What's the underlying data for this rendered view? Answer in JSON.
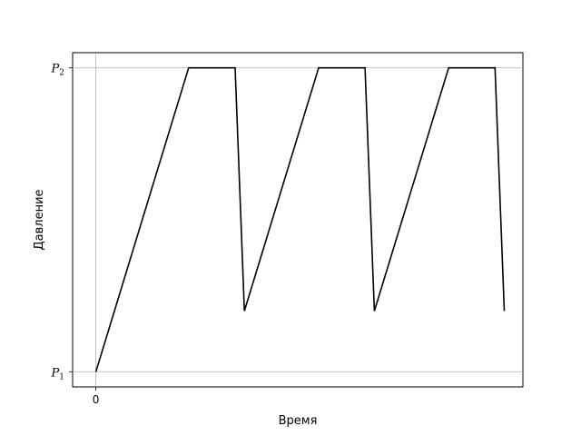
{
  "chart_data": {
    "type": "line",
    "title": "",
    "xlabel": "Время",
    "ylabel": "Давление",
    "x_ticks": [
      {
        "value": 0,
        "label": "0"
      }
    ],
    "y_ticks": [
      {
        "value": 0,
        "label": "P",
        "sub": "1"
      },
      {
        "value": 1,
        "label": "P",
        "sub": "2"
      }
    ],
    "grid": true,
    "xlim": [
      -0.5,
      9.2
    ],
    "ylim": [
      -0.05,
      1.05
    ],
    "series": [
      {
        "color": "#000000",
        "x": [
          0,
          2.0,
          3.0,
          3.2,
          4.8,
          5.8,
          6.0,
          7.6,
          8.6,
          8.8
        ],
        "y": [
          0,
          1,
          1,
          0.2,
          1,
          1,
          0.2,
          1,
          1,
          0.2
        ]
      }
    ]
  }
}
